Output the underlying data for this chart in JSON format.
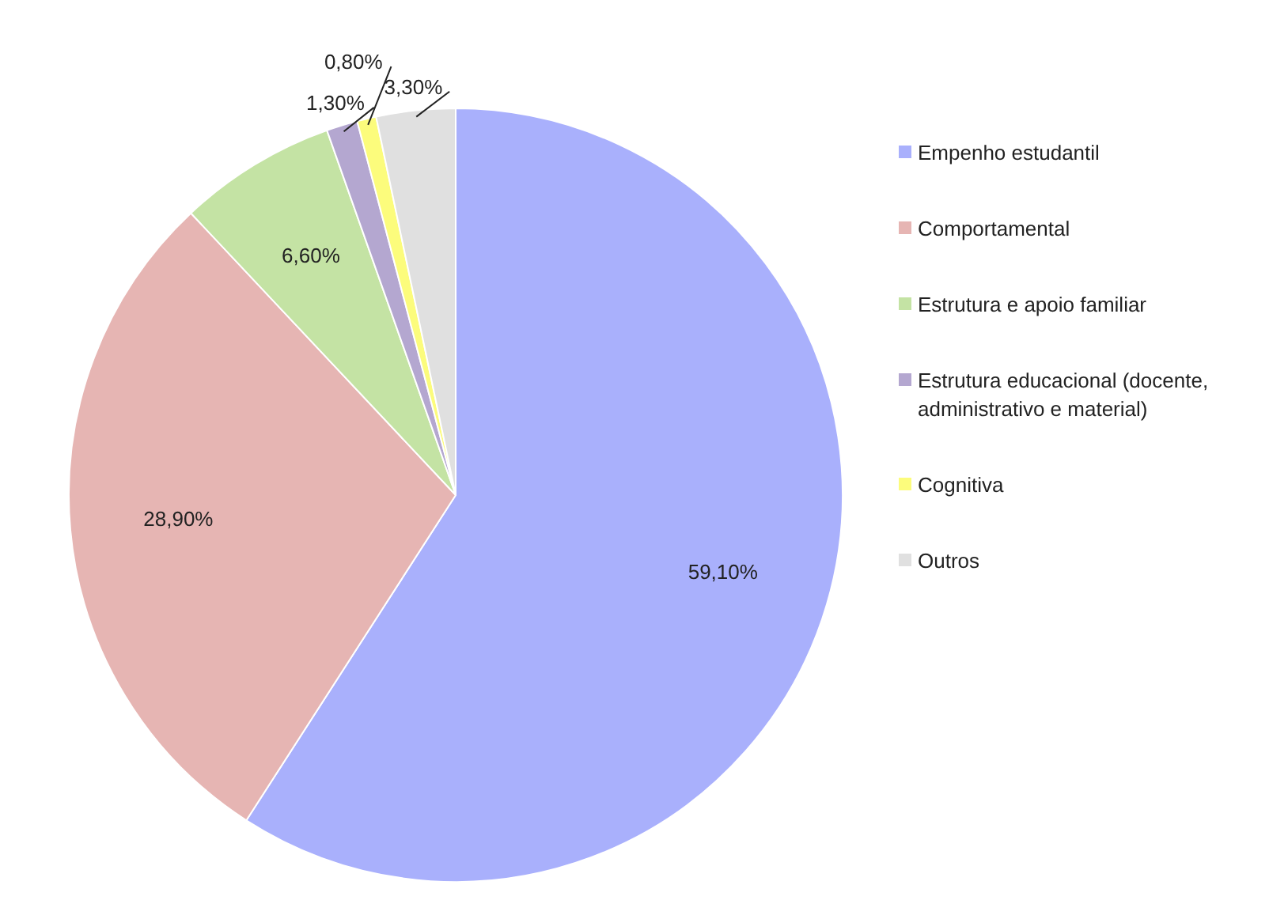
{
  "chart_data": {
    "type": "pie",
    "categories": [
      "Empenho estudantil",
      "Comportamental",
      "Estrutura e apoio familiar",
      "Estrutura educacional (docente, administrativo e material)",
      "Cognitiva",
      "Outros"
    ],
    "values": [
      59.1,
      28.9,
      6.6,
      1.3,
      0.8,
      3.3
    ],
    "colors": [
      "#a9b0fc",
      "#e6b5b3",
      "#c4e3a4",
      "#b4a7d0",
      "#fcfc7c",
      "#e0e0e0"
    ],
    "value_labels": [
      "59,10%",
      "28,90%",
      "6,60%",
      "1,30%",
      "0,80%",
      "3,30%"
    ],
    "legend": "right"
  }
}
